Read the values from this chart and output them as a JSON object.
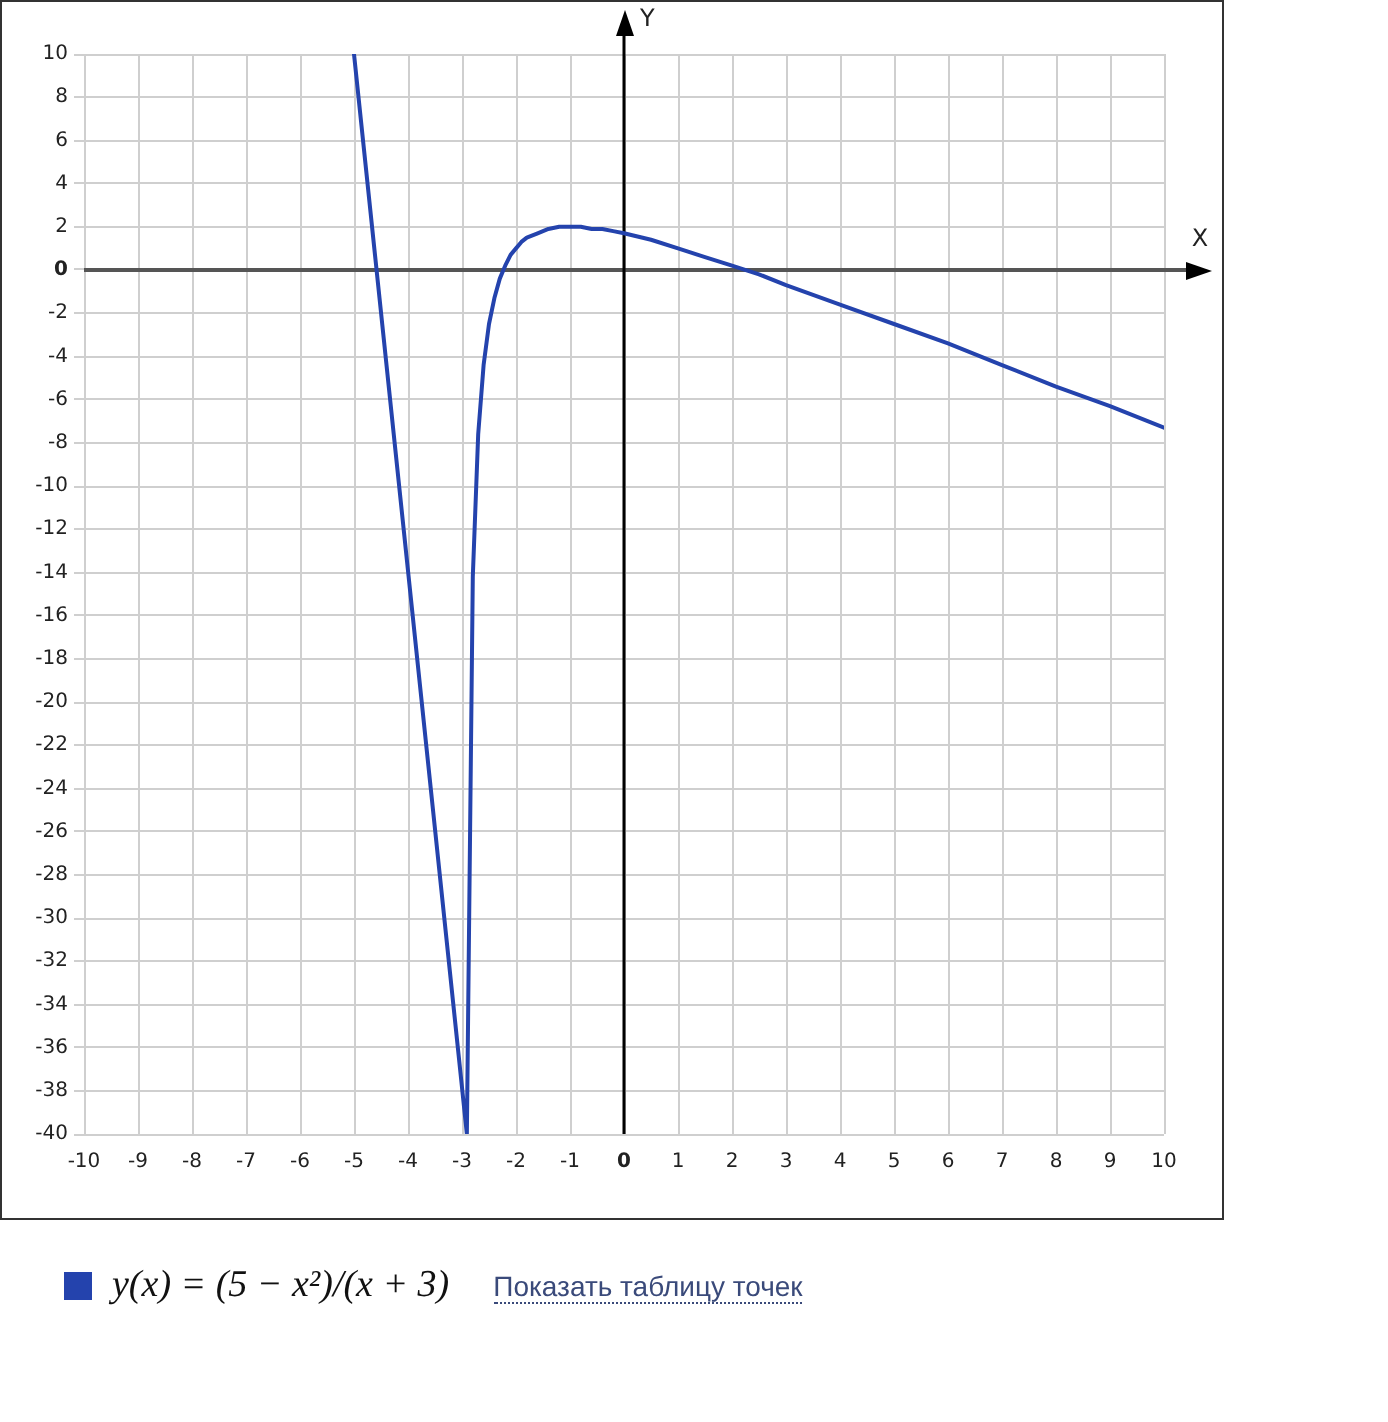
{
  "chart_data": {
    "type": "line",
    "xlabel": "X",
    "ylabel": "Y",
    "x": [
      -5,
      -2.91,
      -2.8,
      -2.7,
      -2.6,
      -2.5,
      -2.4,
      -2.3,
      -2.2,
      -2.1,
      -2,
      -1.9,
      -1.8,
      -1.6,
      -1.4,
      -1.2,
      -1,
      -0.8,
      -0.6,
      -0.4,
      -0.2,
      0,
      0.5,
      1,
      1.5,
      2,
      2.5,
      3,
      4,
      5,
      6,
      7,
      8,
      9,
      10
    ],
    "series": [
      {
        "name": "y(x) = (5 − x²)/(x + 3)",
        "color": "#2443ad",
        "values": [
          10,
          -40,
          -14.2,
          -7.6,
          -4.4,
          -2.5,
          -1.3,
          -0.4,
          0.2,
          0.7,
          1,
          1.3,
          1.5,
          1.7,
          1.9,
          2,
          2,
          2,
          1.9,
          1.9,
          1.8,
          1.7,
          1.4,
          1,
          0.6,
          0.2,
          -0.2,
          -0.7,
          -1.6,
          -2.5,
          -3.4,
          -4.4,
          -5.4,
          -6.3,
          -7.3
        ]
      }
    ],
    "xlim": [
      -10,
      10
    ],
    "ylim": [
      -40,
      10
    ],
    "xticks": [
      -10,
      -9,
      -8,
      -7,
      -6,
      -5,
      -4,
      -3,
      -2,
      -1,
      0,
      1,
      2,
      3,
      4,
      5,
      6,
      7,
      8,
      9,
      10
    ],
    "yticks": [
      -40,
      -38,
      -36,
      -34,
      -32,
      -30,
      -28,
      -26,
      -24,
      -22,
      -20,
      -18,
      -16,
      -14,
      -12,
      -10,
      -8,
      -6,
      -4,
      -2,
      0,
      2,
      4,
      6,
      8,
      10
    ],
    "grid": true,
    "legend": "bottom",
    "marker": "none",
    "annotations": [
      "Показать таблицу точек"
    ]
  }
}
